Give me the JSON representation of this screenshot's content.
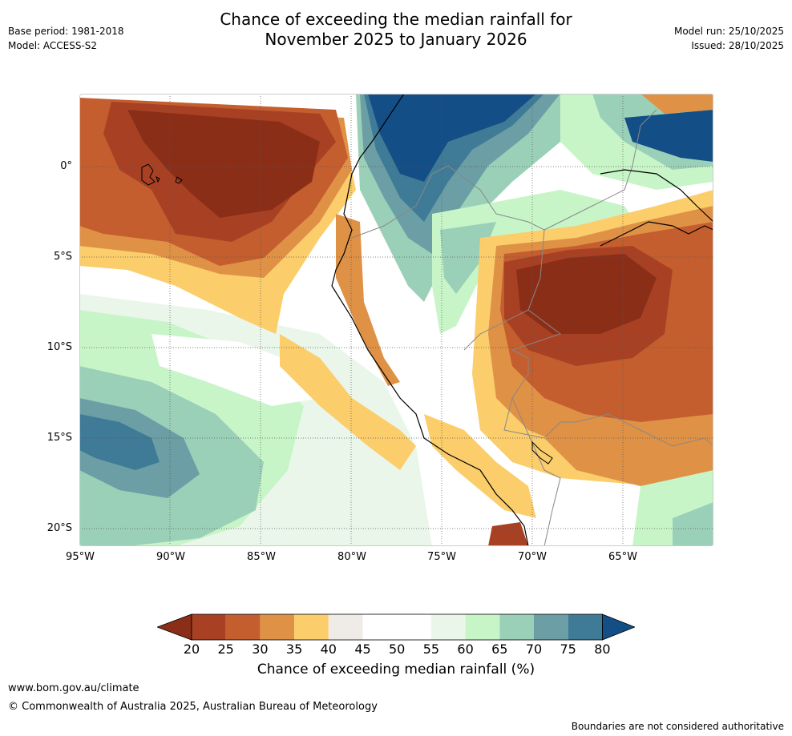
{
  "header": {
    "base_period": "Base period: 1981-2018",
    "model": "Model: ACCESS-S2",
    "title_line1": "Chance of exceeding the median rainfall for",
    "title_line2": "November 2025 to January 2026",
    "model_run": "Model run: 25/10/2025",
    "issued": "Issued: 28/10/2025"
  },
  "map": {
    "lat_ticks": [
      "0°",
      "5°S",
      "10°S",
      "15°S",
      "20°S"
    ],
    "lon_ticks": [
      "95°W",
      "90°W",
      "85°W",
      "80°W",
      "75°W",
      "70°W",
      "65°W"
    ]
  },
  "colorbar": {
    "tick_labels": [
      "20",
      "25",
      "30",
      "35",
      "40",
      "45",
      "50",
      "55",
      "60",
      "65",
      "70",
      "75",
      "80"
    ],
    "colors": [
      "#8b2e18",
      "#a84123",
      "#c45e2e",
      "#df9146",
      "#fbcd6b",
      "#efebe6",
      "#ffffff",
      "#ffffff",
      "#eaf6ea",
      "#c8f5c8",
      "#9bd0b8",
      "#6b9fa5",
      "#3f7b96",
      "#144e86"
    ],
    "label": "Chance of exceeding median rainfall (%)"
  },
  "footer": {
    "url": "www.bom.gov.au/climate",
    "copyright": "© Commonwealth of Australia 2025, Australian Bureau of Meteorology",
    "disclaimer": "Boundaries are not considered authoritative"
  }
}
